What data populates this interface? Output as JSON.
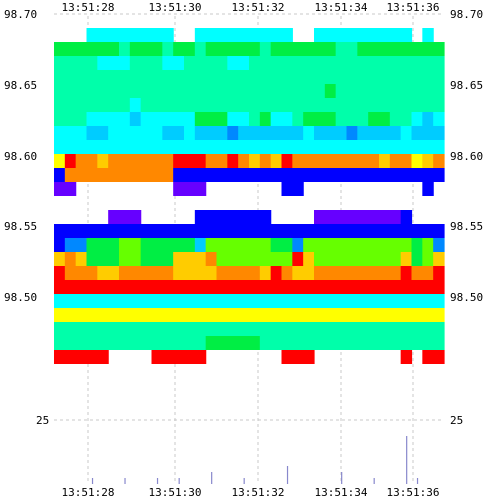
{
  "chart_data": {
    "type": "heatmap",
    "title": "",
    "xlabel": "",
    "ylabel": "",
    "grid": true,
    "x_ticks": [
      "13:51:28",
      "13:51:30",
      "13:51:32",
      "13:51:34",
      "13:51:36"
    ],
    "y_ticks_upper": [
      "98.70",
      "98.65",
      "98.60",
      "98.55",
      "98.50"
    ],
    "y_ticks_lower": [
      "25"
    ],
    "upper_ylim": [
      98.465,
      98.7
    ],
    "x_columns": 36,
    "colorscale": [
      "#ff0000",
      "#ff8800",
      "#ffcc00",
      "#ffff00",
      "#66ff00",
      "#00ee44",
      "#00ffaa",
      "#00ffff",
      "#00ccff",
      "#0088ff",
      "#0000ff",
      "#6600ff"
    ],
    "heatmap_rows": [
      {
        "price": 98.7,
        "levels": []
      },
      {
        "price": 98.685,
        "levels": []
      },
      {
        "price": 98.675,
        "levels": [
          -1,
          -1,
          -1,
          7,
          7,
          7,
          7,
          7,
          7,
          7,
          7,
          -1,
          -1,
          7,
          7,
          7,
          7,
          7,
          7,
          7,
          7,
          7,
          -1,
          -1,
          7,
          7,
          7,
          7,
          7,
          7,
          7,
          7,
          7,
          -1,
          7,
          -1
        ]
      },
      {
        "price": 98.665,
        "levels": [
          5,
          5,
          5,
          5,
          5,
          5,
          6,
          5,
          5,
          5,
          6,
          5,
          5,
          6,
          5,
          5,
          5,
          5,
          5,
          6,
          5,
          5,
          5,
          5,
          5,
          5,
          6,
          6,
          5,
          5,
          5,
          5,
          5,
          5,
          5,
          5
        ]
      },
      {
        "price": 98.655,
        "levels": [
          6,
          6,
          6,
          6,
          7,
          7,
          7,
          6,
          6,
          6,
          7,
          7,
          6,
          6,
          6,
          6,
          7,
          7,
          6,
          6,
          6,
          6,
          6,
          6,
          6,
          6,
          6,
          6,
          6,
          6,
          6,
          6,
          6,
          6,
          6,
          6
        ]
      },
      {
        "price": 98.645,
        "levels": [
          6,
          6,
          6,
          6,
          6,
          6,
          6,
          6,
          6,
          6,
          6,
          6,
          6,
          6,
          6,
          6,
          6,
          6,
          6,
          6,
          6,
          6,
          6,
          6,
          6,
          6,
          6,
          6,
          6,
          6,
          6,
          6,
          6,
          6,
          6,
          6
        ]
      },
      {
        "price": 98.635,
        "levels": [
          6,
          6,
          6,
          6,
          6,
          6,
          6,
          6,
          6,
          6,
          6,
          6,
          6,
          6,
          6,
          6,
          6,
          6,
          6,
          6,
          6,
          6,
          6,
          6,
          6,
          5,
          6,
          6,
          6,
          6,
          6,
          6,
          6,
          6,
          6,
          6
        ]
      },
      {
        "price": 98.625,
        "levels": [
          6,
          6,
          6,
          6,
          6,
          6,
          6,
          7,
          6,
          6,
          6,
          6,
          6,
          6,
          6,
          6,
          6,
          6,
          6,
          6,
          6,
          6,
          6,
          6,
          6,
          6,
          6,
          6,
          6,
          6,
          6,
          6,
          6,
          6,
          6,
          6
        ]
      },
      {
        "price": 98.615,
        "levels": [
          6,
          6,
          6,
          7,
          7,
          7,
          7,
          8,
          7,
          7,
          7,
          7,
          7,
          5,
          5,
          5,
          7,
          7,
          6,
          5,
          7,
          7,
          6,
          5,
          5,
          5,
          6,
          6,
          6,
          5,
          5,
          6,
          6,
          7,
          8,
          7
        ]
      },
      {
        "price": 98.605,
        "levels": [
          7,
          7,
          7,
          8,
          8,
          7,
          7,
          7,
          7,
          7,
          8,
          8,
          7,
          8,
          8,
          8,
          9,
          8,
          8,
          8,
          8,
          8,
          8,
          7,
          8,
          8,
          8,
          9,
          8,
          8,
          8,
          8,
          7,
          8,
          8,
          8
        ]
      },
      {
        "price": 98.595,
        "levels": [
          7,
          7,
          7,
          7,
          7,
          7,
          7,
          7,
          7,
          7,
          7,
          7,
          7,
          7,
          7,
          7,
          7,
          7,
          7,
          7,
          7,
          7,
          7,
          7,
          7,
          7,
          7,
          7,
          7,
          7,
          7,
          7,
          7,
          7,
          7,
          7
        ]
      },
      {
        "price": 98.585,
        "levels": [
          3,
          0,
          1,
          1,
          2,
          1,
          1,
          1,
          1,
          1,
          1,
          0,
          0,
          0,
          1,
          1,
          0,
          1,
          2,
          1,
          2,
          0,
          1,
          1,
          1,
          1,
          1,
          1,
          1,
          1,
          2,
          1,
          1,
          3,
          2,
          1
        ]
      },
      {
        "price": 98.575,
        "levels": [
          10,
          1,
          1,
          1,
          1,
          1,
          1,
          1,
          1,
          1,
          1,
          10,
          10,
          10,
          10,
          10,
          10,
          10,
          10,
          10,
          10,
          10,
          10,
          10,
          10,
          10,
          10,
          10,
          10,
          10,
          10,
          10,
          10,
          10,
          10,
          10
        ]
      },
      {
        "price": 98.565,
        "levels": [
          11,
          11,
          -1,
          -1,
          -1,
          -1,
          -1,
          -1,
          -1,
          -1,
          -1,
          11,
          11,
          11,
          -1,
          -1,
          -1,
          -1,
          -1,
          -1,
          -1,
          10,
          10,
          -1,
          -1,
          -1,
          -1,
          -1,
          -1,
          -1,
          -1,
          -1,
          -1,
          -1,
          10,
          -1
        ]
      },
      {
        "price": 98.555,
        "levels": []
      },
      {
        "price": 98.545,
        "levels": [
          -1,
          -1,
          -1,
          -1,
          -1,
          11,
          11,
          11,
          -1,
          -1,
          -1,
          -1,
          -1,
          10,
          10,
          10,
          10,
          10,
          10,
          10,
          -1,
          -1,
          -1,
          -1,
          11,
          11,
          11,
          11,
          11,
          11,
          11,
          11,
          10,
          -1,
          -1,
          -1
        ]
      },
      {
        "price": 98.535,
        "levels": [
          10,
          10,
          10,
          10,
          10,
          10,
          10,
          10,
          10,
          10,
          10,
          10,
          10,
          10,
          10,
          10,
          10,
          10,
          10,
          10,
          10,
          10,
          10,
          10,
          10,
          10,
          10,
          10,
          10,
          10,
          10,
          10,
          10,
          10,
          10,
          10
        ]
      },
      {
        "price": 98.525,
        "levels": [
          10,
          9,
          9,
          5,
          5,
          5,
          4,
          4,
          5,
          5,
          5,
          5,
          5,
          8,
          4,
          4,
          4,
          4,
          4,
          4,
          5,
          5,
          9,
          4,
          4,
          4,
          4,
          4,
          4,
          4,
          4,
          4,
          4,
          5,
          4,
          9
        ]
      },
      {
        "price": 98.515,
        "levels": [
          2,
          1,
          2,
          5,
          5,
          5,
          4,
          4,
          5,
          5,
          5,
          2,
          2,
          2,
          1,
          4,
          4,
          4,
          4,
          4,
          4,
          4,
          0,
          2,
          4,
          4,
          4,
          4,
          4,
          4,
          4,
          4,
          2,
          5,
          4,
          2
        ]
      },
      {
        "price": 98.505,
        "levels": [
          0,
          1,
          1,
          1,
          2,
          2,
          1,
          1,
          1,
          1,
          1,
          2,
          2,
          2,
          2,
          1,
          1,
          1,
          1,
          2,
          0,
          1,
          2,
          2,
          1,
          1,
          1,
          1,
          1,
          1,
          1,
          1,
          0,
          1,
          1,
          0
        ]
      },
      {
        "price": 98.495,
        "levels": [
          0,
          0,
          0,
          0,
          0,
          0,
          0,
          0,
          0,
          0,
          0,
          0,
          0,
          0,
          0,
          0,
          0,
          0,
          0,
          0,
          0,
          0,
          0,
          0,
          0,
          0,
          0,
          0,
          0,
          0,
          0,
          0,
          0,
          0,
          0,
          0
        ]
      },
      {
        "price": 98.485,
        "levels": [
          7,
          7,
          7,
          7,
          7,
          7,
          7,
          7,
          7,
          7,
          7,
          7,
          7,
          7,
          7,
          7,
          7,
          7,
          7,
          7,
          7,
          7,
          7,
          7,
          7,
          7,
          7,
          7,
          7,
          7,
          7,
          7,
          7,
          7,
          7,
          7
        ]
      },
      {
        "price": 98.475,
        "levels": [
          3,
          3,
          3,
          3,
          3,
          3,
          3,
          3,
          3,
          3,
          3,
          3,
          3,
          3,
          3,
          3,
          3,
          3,
          3,
          3,
          3,
          3,
          3,
          3,
          3,
          3,
          3,
          3,
          3,
          3,
          3,
          3,
          3,
          3,
          3,
          3
        ]
      },
      {
        "price": 98.465,
        "levels": [
          6,
          6,
          6,
          6,
          6,
          6,
          6,
          6,
          6,
          6,
          6,
          6,
          6,
          6,
          6,
          6,
          6,
          6,
          6,
          6,
          6,
          6,
          6,
          6,
          6,
          6,
          6,
          6,
          6,
          6,
          6,
          6,
          6,
          6,
          6,
          6
        ]
      },
      {
        "price": 98.455,
        "levels": [
          6,
          6,
          6,
          6,
          6,
          6,
          6,
          6,
          6,
          6,
          6,
          6,
          6,
          6,
          5,
          5,
          5,
          5,
          5,
          6,
          6,
          6,
          6,
          6,
          6,
          6,
          6,
          6,
          6,
          6,
          6,
          6,
          6,
          6,
          6,
          6
        ]
      },
      {
        "price": 98.445,
        "levels": [
          0,
          0,
          0,
          0,
          0,
          -1,
          -1,
          -1,
          -1,
          0,
          0,
          0,
          0,
          0,
          -1,
          -1,
          -1,
          -1,
          -1,
          -1,
          -1,
          0,
          0,
          0,
          -1,
          -1,
          -1,
          -1,
          -1,
          -1,
          -1,
          -1,
          0,
          -1,
          0,
          0
        ]
      }
    ],
    "volume_bars": [
      0,
      0,
      0,
      1,
      0,
      0,
      1,
      0,
      0,
      1,
      0,
      1,
      0,
      0,
      2,
      0,
      0,
      1,
      0,
      0,
      0,
      3,
      0,
      0,
      0,
      0,
      2,
      0,
      0,
      1,
      0,
      0,
      8,
      1,
      0,
      0
    ]
  }
}
